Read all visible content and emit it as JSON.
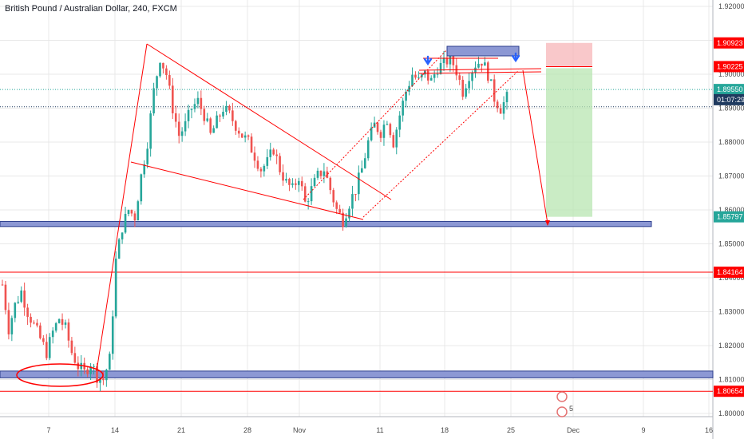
{
  "header": {
    "title": "British Pound / Australian Dollar, 240, FXCM"
  },
  "colors": {
    "up": "#26a69a",
    "down": "#ef5350",
    "red": "#ff0000",
    "zone": "#8c98d4",
    "zone_border": "#2c3e8c",
    "loss": "#f7b6b8",
    "profit": "#b8e5b2",
    "grid": "#e8e8e8",
    "dotted_teal": "#26a69a",
    "dotted_navy": "#1f3a5f"
  },
  "chart_data": {
    "type": "candlestick",
    "title": "British Pound / Australian Dollar, 240, FXCM",
    "ylim": [
      1.795,
      1.925
    ],
    "y_ticks": [
      "1.92000",
      "1.91000",
      "1.90000",
      "1.89000",
      "1.88000",
      "1.87000",
      "1.86000",
      "1.85000",
      "1.84000",
      "1.83000",
      "1.82000",
      "1.81000",
      "1.80000"
    ],
    "x_ticks": [
      "7",
      "14",
      "21",
      "28",
      "Nov",
      "11",
      "18",
      "25",
      "Dec",
      "9",
      "16"
    ],
    "price_tags": [
      {
        "label": "1.90923",
        "value": 1.90923,
        "color": "#ff0000"
      },
      {
        "label": "1.90225",
        "value": 1.90225,
        "color": "#ff0000"
      },
      {
        "label": "1.89550",
        "value": 1.8955,
        "color": "#26a69a"
      },
      {
        "label": "01:07:29",
        "value": 1.8925,
        "color": "#1f3a5f"
      },
      {
        "label": "1.85797",
        "value": 1.85797,
        "color": "#26a69a"
      },
      {
        "label": "1.84164",
        "value": 1.84164,
        "color": "#ff0000"
      },
      {
        "label": "1.80654",
        "value": 1.80654,
        "color": "#ff0000"
      }
    ],
    "horizontal_lines": [
      {
        "value": 1.84164,
        "color": "#ff0000"
      },
      {
        "value": 1.80654,
        "color": "#ff0000"
      }
    ],
    "zones": [
      {
        "from": 1.8551,
        "to": 1.8566
      },
      {
        "from": 1.8105,
        "to": 1.8125
      }
    ],
    "series_points": [
      [
        0,
        1.838
      ],
      [
        2,
        1.825
      ],
      [
        4,
        1.832
      ],
      [
        6,
        1.836
      ],
      [
        8,
        1.83
      ],
      [
        10,
        1.826
      ],
      [
        12,
        1.822
      ],
      [
        14,
        1.818
      ],
      [
        16,
        1.824
      ],
      [
        18,
        1.828
      ],
      [
        20,
        1.825
      ],
      [
        22,
        1.818
      ],
      [
        24,
        1.814
      ],
      [
        26,
        1.812
      ],
      [
        28,
        1.815
      ],
      [
        30,
        1.811
      ],
      [
        32,
        1.81
      ],
      [
        34,
        1.816
      ],
      [
        35,
        1.83
      ],
      [
        36,
        1.845
      ],
      [
        38,
        1.855
      ],
      [
        40,
        1.86
      ],
      [
        42,
        1.858
      ],
      [
        44,
        1.87
      ],
      [
        46,
        1.88
      ],
      [
        48,
        1.895
      ],
      [
        50,
        1.905
      ],
      [
        52,
        1.9
      ],
      [
        54,
        1.89
      ],
      [
        56,
        1.882
      ],
      [
        58,
        1.885
      ],
      [
        60,
        1.89
      ],
      [
        62,
        1.892
      ],
      [
        64,
        1.888
      ],
      [
        66,
        1.882
      ],
      [
        68,
        1.886
      ],
      [
        70,
        1.89
      ],
      [
        72,
        1.888
      ],
      [
        74,
        1.885
      ],
      [
        76,
        1.882
      ],
      [
        78,
        1.88
      ],
      [
        80,
        1.876
      ],
      [
        82,
        1.872
      ],
      [
        84,
        1.874
      ],
      [
        86,
        1.878
      ],
      [
        88,
        1.872
      ],
      [
        90,
        1.868
      ],
      [
        92,
        1.866
      ],
      [
        94,
        1.87
      ],
      [
        96,
        1.862
      ],
      [
        98,
        1.866
      ],
      [
        100,
        1.87
      ],
      [
        102,
        1.872
      ],
      [
        104,
        1.866
      ],
      [
        106,
        1.86
      ],
      [
        108,
        1.857
      ],
      [
        110,
        1.862
      ],
      [
        112,
        1.866
      ],
      [
        114,
        1.872
      ],
      [
        116,
        1.88
      ],
      [
        118,
        1.885
      ],
      [
        120,
        1.883
      ],
      [
        122,
        1.887
      ],
      [
        124,
        1.88
      ],
      [
        126,
        1.888
      ],
      [
        128,
        1.895
      ],
      [
        130,
        1.9
      ],
      [
        132,
        1.898
      ],
      [
        134,
        1.9
      ],
      [
        136,
        1.898
      ],
      [
        138,
        1.902
      ],
      [
        140,
        1.903
      ],
      [
        142,
        1.905
      ],
      [
        144,
        1.901
      ],
      [
        146,
        1.895
      ],
      [
        148,
        1.9
      ],
      [
        150,
        1.903
      ],
      [
        152,
        1.904
      ],
      [
        154,
        1.9
      ],
      [
        156,
        1.893
      ],
      [
        158,
        1.89
      ],
      [
        160,
        1.893
      ]
    ]
  }
}
